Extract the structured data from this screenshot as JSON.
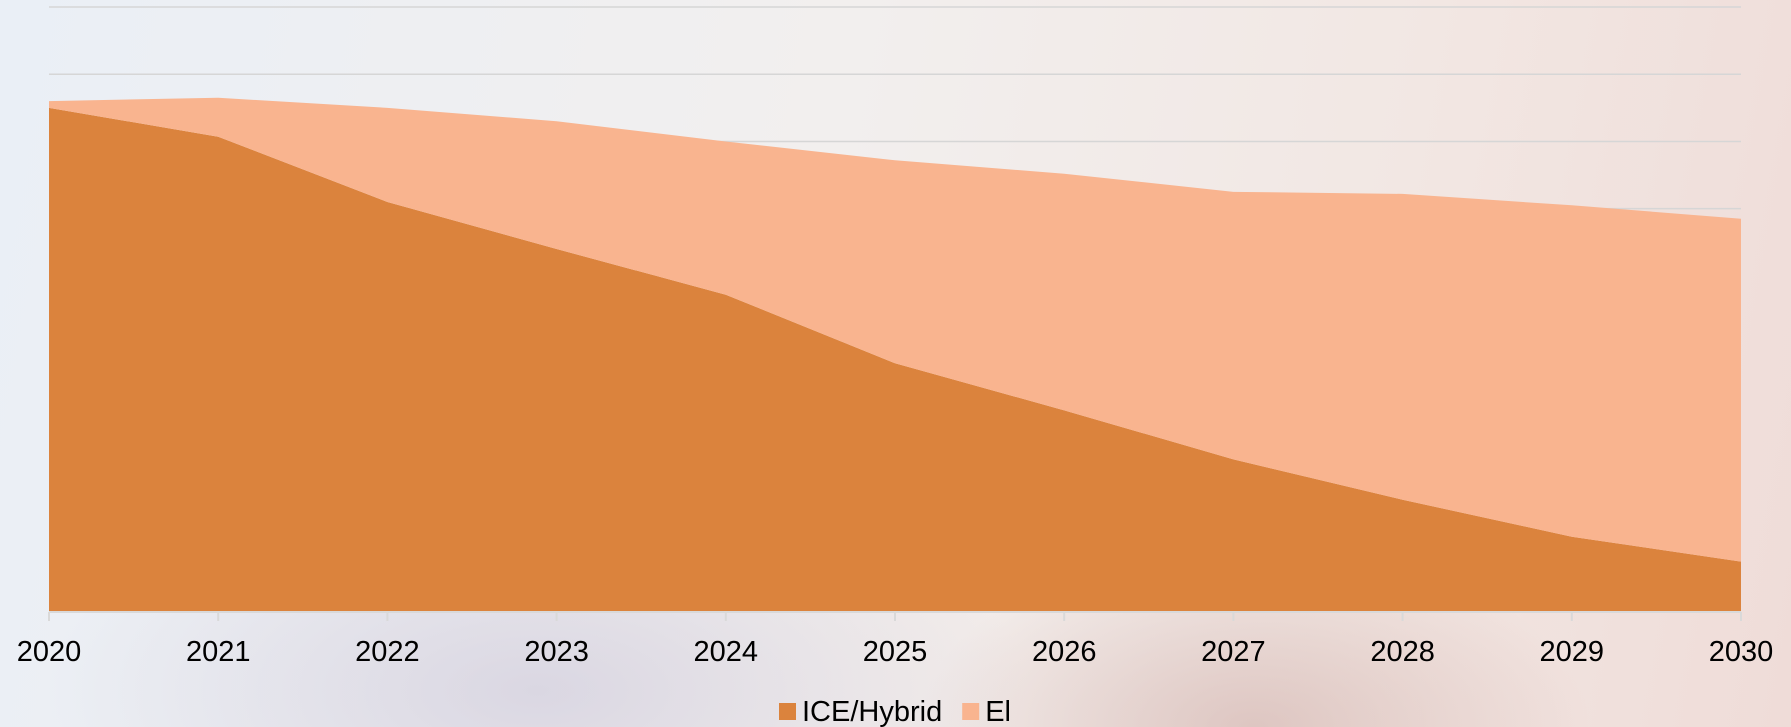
{
  "chart_data": {
    "type": "area",
    "stacked": true,
    "x": [
      "2020",
      "2021",
      "2022",
      "2023",
      "2024",
      "2025",
      "2026",
      "2027",
      "2028",
      "2029",
      "2030"
    ],
    "series": [
      {
        "name": "ICE/Hybrid",
        "color": "#db833d",
        "values": [
          7.5,
          7.07,
          6.1,
          5.4,
          4.72,
          3.7,
          3.0,
          2.27,
          1.67,
          1.12,
          0.75
        ]
      },
      {
        "name": "El",
        "color": "#f9b48f",
        "values": [
          0.1,
          0.58,
          1.4,
          1.9,
          2.28,
          3.02,
          3.52,
          3.98,
          4.55,
          4.93,
          5.1
        ]
      }
    ],
    "ylim": [
      0,
      9
    ],
    "y_gridlines": [
      0,
      1,
      2,
      3,
      4,
      5,
      6,
      7,
      8,
      9
    ],
    "grid": true,
    "legend": "bottom-center"
  }
}
